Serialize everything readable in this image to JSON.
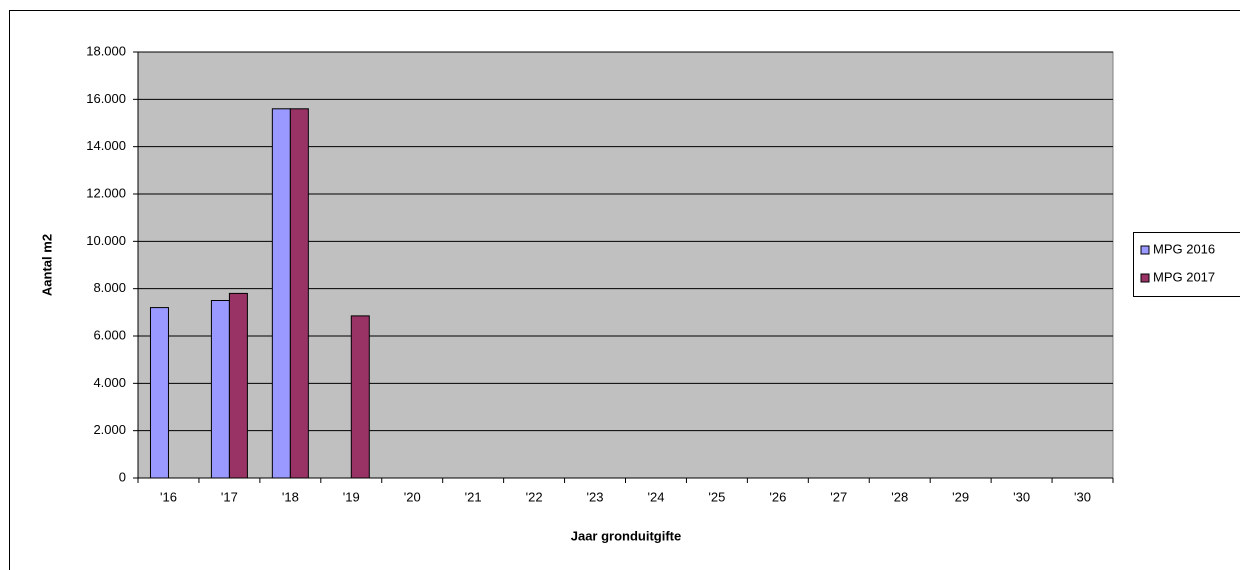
{
  "chart_data": {
    "type": "bar",
    "x_label": "Jaar gronduitgifte",
    "y_label": "Aantal m2",
    "categories": [
      "'16",
      "'17",
      "'18",
      "'19",
      "'20",
      "'21",
      "'22",
      "'23",
      "'24",
      "'25",
      "'26",
      "'27",
      "'28",
      "'29",
      "'30",
      "'30"
    ],
    "series": [
      {
        "name": "MPG 2016",
        "color": "#9999ff",
        "values": [
          7200,
          7500,
          15600,
          null,
          null,
          null,
          null,
          null,
          null,
          null,
          null,
          null,
          null,
          null,
          null,
          null
        ]
      },
      {
        "name": "MPG 2017",
        "color": "#993366",
        "values": [
          null,
          7800,
          15600,
          6850,
          null,
          null,
          null,
          null,
          null,
          null,
          null,
          null,
          null,
          null,
          null,
          null
        ]
      }
    ],
    "ylim": [
      0,
      18000
    ],
    "yticks": [
      0,
      {
        "value": 2000,
        "label": "2.000"
      },
      {
        "value": 4000,
        "label": "4.000"
      },
      {
        "value": 6000,
        "label": "6.000"
      },
      {
        "value": 8000,
        "label": "8.000"
      },
      {
        "value": 10000,
        "label": "10.000"
      },
      {
        "value": 12000,
        "label": "12.000"
      },
      {
        "value": 14000,
        "label": "14.000"
      },
      {
        "value": 16000,
        "label": "16.000"
      },
      {
        "value": 18000,
        "label": "18.000"
      }
    ],
    "grid": true,
    "legend": "right"
  }
}
